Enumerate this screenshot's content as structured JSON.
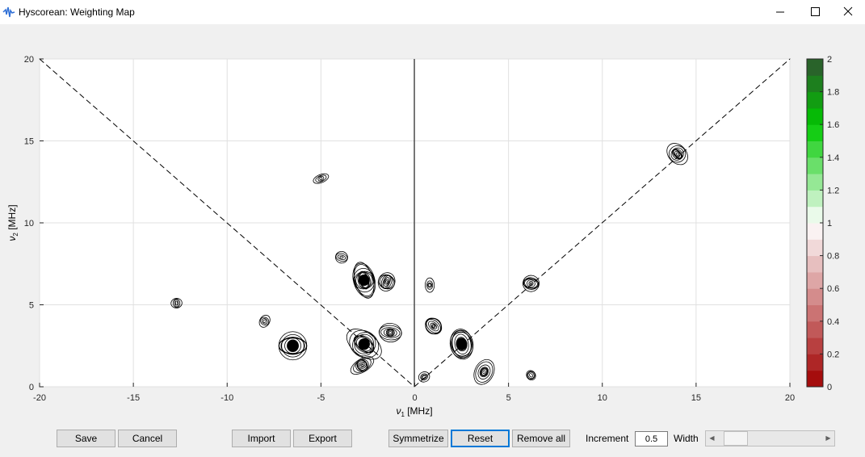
{
  "window": {
    "title": "Hyscorean: Weighting Map",
    "controls": {
      "minimize": "—",
      "maximize": "☐",
      "close": "✕"
    }
  },
  "plot": {
    "x_ticks": [
      "-20",
      "-15",
      "-10",
      "-5",
      "0",
      "5",
      "10",
      "15",
      "20"
    ],
    "y_ticks": [
      "0",
      "5",
      "10",
      "15",
      "20"
    ],
    "xlabel_symbol": "ν",
    "xlabel_sub": "1",
    "xlabel_unit": " [MHz]",
    "ylabel_symbol": "ν",
    "ylabel_sub": "2",
    "ylabel_unit": " [MHz]",
    "colorbar_ticks": [
      "0",
      "0.2",
      "0.4",
      "0.6",
      "0.8",
      "1",
      "1.2",
      "1.4",
      "1.6",
      "1.8",
      "2"
    ]
  },
  "chart_data": {
    "type": "contour",
    "xlim": [
      -20,
      20
    ],
    "ylim": [
      0,
      20
    ],
    "grid": true,
    "diagonals": "dashed anti-diagonal (-20,20)-(0,0) and diagonal (0,0)-(20,20)",
    "peaks": [
      {
        "x": -6.5,
        "y": 2.5,
        "level": "high"
      },
      {
        "x": -2.7,
        "y": 2.6,
        "level": "high"
      },
      {
        "x": -2.7,
        "y": 6.5,
        "level": "high"
      },
      {
        "x": -1.5,
        "y": 6.4,
        "level": "medium"
      },
      {
        "x": -2.8,
        "y": 1.3,
        "level": "medium"
      },
      {
        "x": -1.3,
        "y": 3.3,
        "level": "medium"
      },
      {
        "x": 1.0,
        "y": 3.7,
        "level": "medium"
      },
      {
        "x": 2.5,
        "y": 2.6,
        "level": "high"
      },
      {
        "x": 3.7,
        "y": 0.9,
        "level": "medium"
      },
      {
        "x": 0.5,
        "y": 0.6,
        "level": "low"
      },
      {
        "x": 6.2,
        "y": 6.3,
        "level": "medium"
      },
      {
        "x": 14.0,
        "y": 14.2,
        "level": "medium"
      },
      {
        "x": -12.7,
        "y": 5.1,
        "level": "low"
      },
      {
        "x": -8.0,
        "y": 4.0,
        "level": "low"
      },
      {
        "x": -5.0,
        "y": 12.7,
        "level": "low"
      },
      {
        "x": -3.9,
        "y": 7.9,
        "level": "low"
      },
      {
        "x": 6.2,
        "y": 0.7,
        "level": "low"
      },
      {
        "x": 0.8,
        "y": 6.2,
        "level": "low"
      }
    ],
    "colorbar": {
      "range": [
        0,
        2
      ],
      "ticks": [
        0,
        0.2,
        0.4,
        0.6,
        0.8,
        1,
        1.2,
        1.4,
        1.6,
        1.8,
        2
      ],
      "low_color": "#a00000",
      "mid_color": "#ffffff",
      "high_color": "#2f5430"
    }
  },
  "buttons": {
    "save": "Save",
    "cancel": "Cancel",
    "import": "Import",
    "export": "Export",
    "symmetrize": "Symmetrize",
    "reset": "Reset",
    "remove_all": "Remove all"
  },
  "increment": {
    "label": "Increment",
    "value": "0.5"
  },
  "width": {
    "label": "Width",
    "value_fraction": 0.07
  }
}
